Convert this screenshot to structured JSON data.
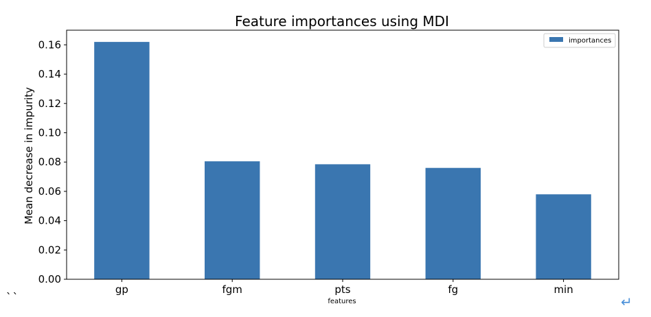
{
  "chart_data": {
    "type": "bar",
    "title": "Feature importances using MDI",
    "xlabel": "features",
    "ylabel": "Mean decrease in impurity",
    "categories": [
      "gp",
      "fgm",
      "pts",
      "fg",
      "min"
    ],
    "series": [
      {
        "name": "importances",
        "values": [
          0.162,
          0.0805,
          0.0785,
          0.076,
          0.058
        ]
      }
    ],
    "ylim": [
      0,
      0.17
    ],
    "yticks": [
      "0.00",
      "0.02",
      "0.04",
      "0.06",
      "0.08",
      "0.10",
      "0.12",
      "0.14",
      "0.16"
    ],
    "bar_color": "#3a76b0",
    "legend_position": "top-right",
    "grid": false
  },
  "decorations": {
    "backtick_text": "``",
    "return_icon": "↵"
  }
}
